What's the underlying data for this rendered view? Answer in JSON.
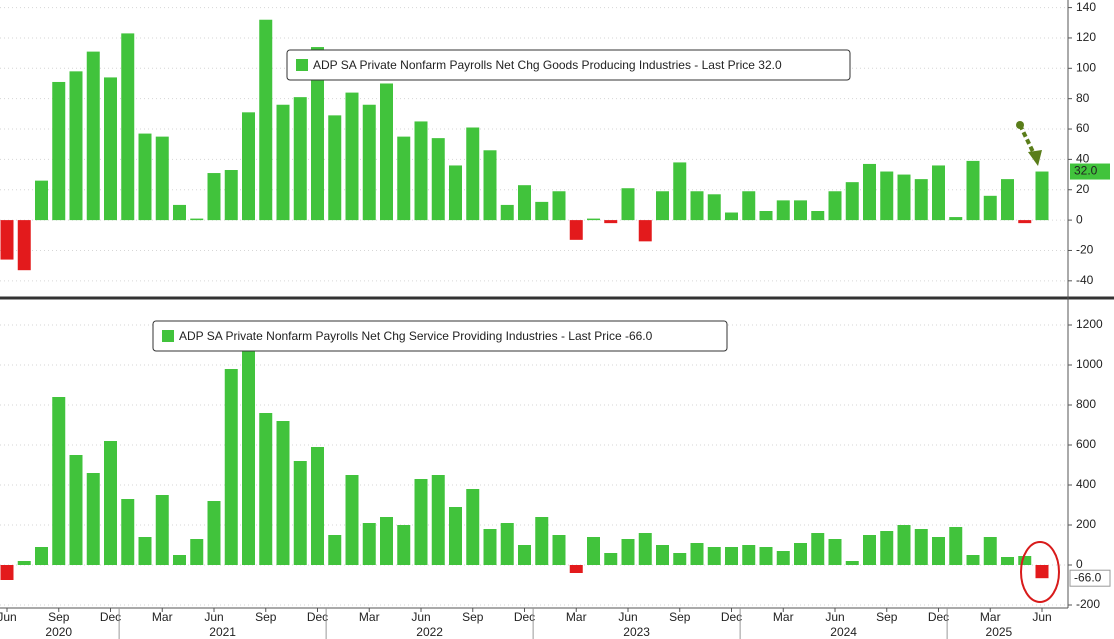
{
  "chart_data": [
    {
      "type": "bar",
      "series": [
        {
          "name": "ADP SA Private Nonfarm Payrolls Net Chg Goods Producing Industries - Last Price 32.0",
          "color": "#41c33c",
          "negative_color": "#e31a1c",
          "values": [
            -26,
            -33,
            26,
            91,
            98,
            111,
            94,
            123,
            57,
            55,
            10,
            1,
            31,
            33,
            71,
            132,
            76,
            81,
            114,
            69,
            84,
            76,
            90,
            55,
            65,
            54,
            36,
            61,
            46,
            10,
            23,
            12,
            19,
            -13,
            1,
            -2,
            21,
            -14,
            19,
            38,
            19,
            17,
            5,
            19,
            6,
            13,
            13,
            6,
            19,
            25,
            37,
            32,
            30,
            27,
            36,
            2,
            39,
            16,
            27,
            -2,
            32
          ]
        }
      ],
      "last_label": "32.0",
      "ylim": [
        -50,
        145
      ],
      "yticks": [
        140,
        120,
        100,
        80,
        60,
        40,
        20,
        0,
        -20,
        -40
      ],
      "grid": true
    },
    {
      "type": "bar",
      "categories": [
        "Jun",
        null,
        null,
        "Sep",
        null,
        null,
        "Dec",
        null,
        null,
        "Mar",
        null,
        null,
        "Jun",
        null,
        null,
        "Sep",
        null,
        null,
        "Dec",
        null,
        null,
        "Mar",
        null,
        null,
        "Jun",
        null,
        null,
        "Sep",
        null,
        null,
        "Dec",
        null,
        null,
        "Mar",
        null,
        null,
        "Jun",
        null,
        null,
        "Sep",
        null,
        null,
        "Dec",
        null,
        null,
        "Mar",
        null,
        null,
        "Jun",
        null,
        null,
        "Sep",
        null,
        null,
        "Dec",
        null,
        null,
        "Mar",
        null,
        null,
        "Jun"
      ],
      "years": [
        "2020",
        "2021",
        "2022",
        "2023",
        "2024",
        "2025"
      ],
      "series": [
        {
          "name": "ADP SA Private Nonfarm Payrolls Net Chg Service Providing Industries - Last Price -66.0",
          "color": "#41c33c",
          "negative_color": "#e31a1c",
          "values": [
            -75,
            20,
            90,
            840,
            550,
            460,
            620,
            330,
            140,
            350,
            50,
            130,
            320,
            980,
            1080,
            760,
            720,
            520,
            590,
            150,
            450,
            210,
            240,
            200,
            430,
            450,
            290,
            380,
            180,
            210,
            100,
            240,
            150,
            -40,
            140,
            60,
            130,
            160,
            100,
            60,
            110,
            90,
            90,
            100,
            90,
            70,
            110,
            160,
            130,
            20,
            150,
            170,
            200,
            180,
            140,
            190,
            50,
            140,
            40,
            45,
            -66
          ]
        }
      ],
      "last_label": "-66.0",
      "ylim": [
        -215,
        1300
      ],
      "yticks": [
        1200,
        1000,
        800,
        600,
        400,
        200,
        0,
        -200
      ],
      "grid": true
    }
  ]
}
